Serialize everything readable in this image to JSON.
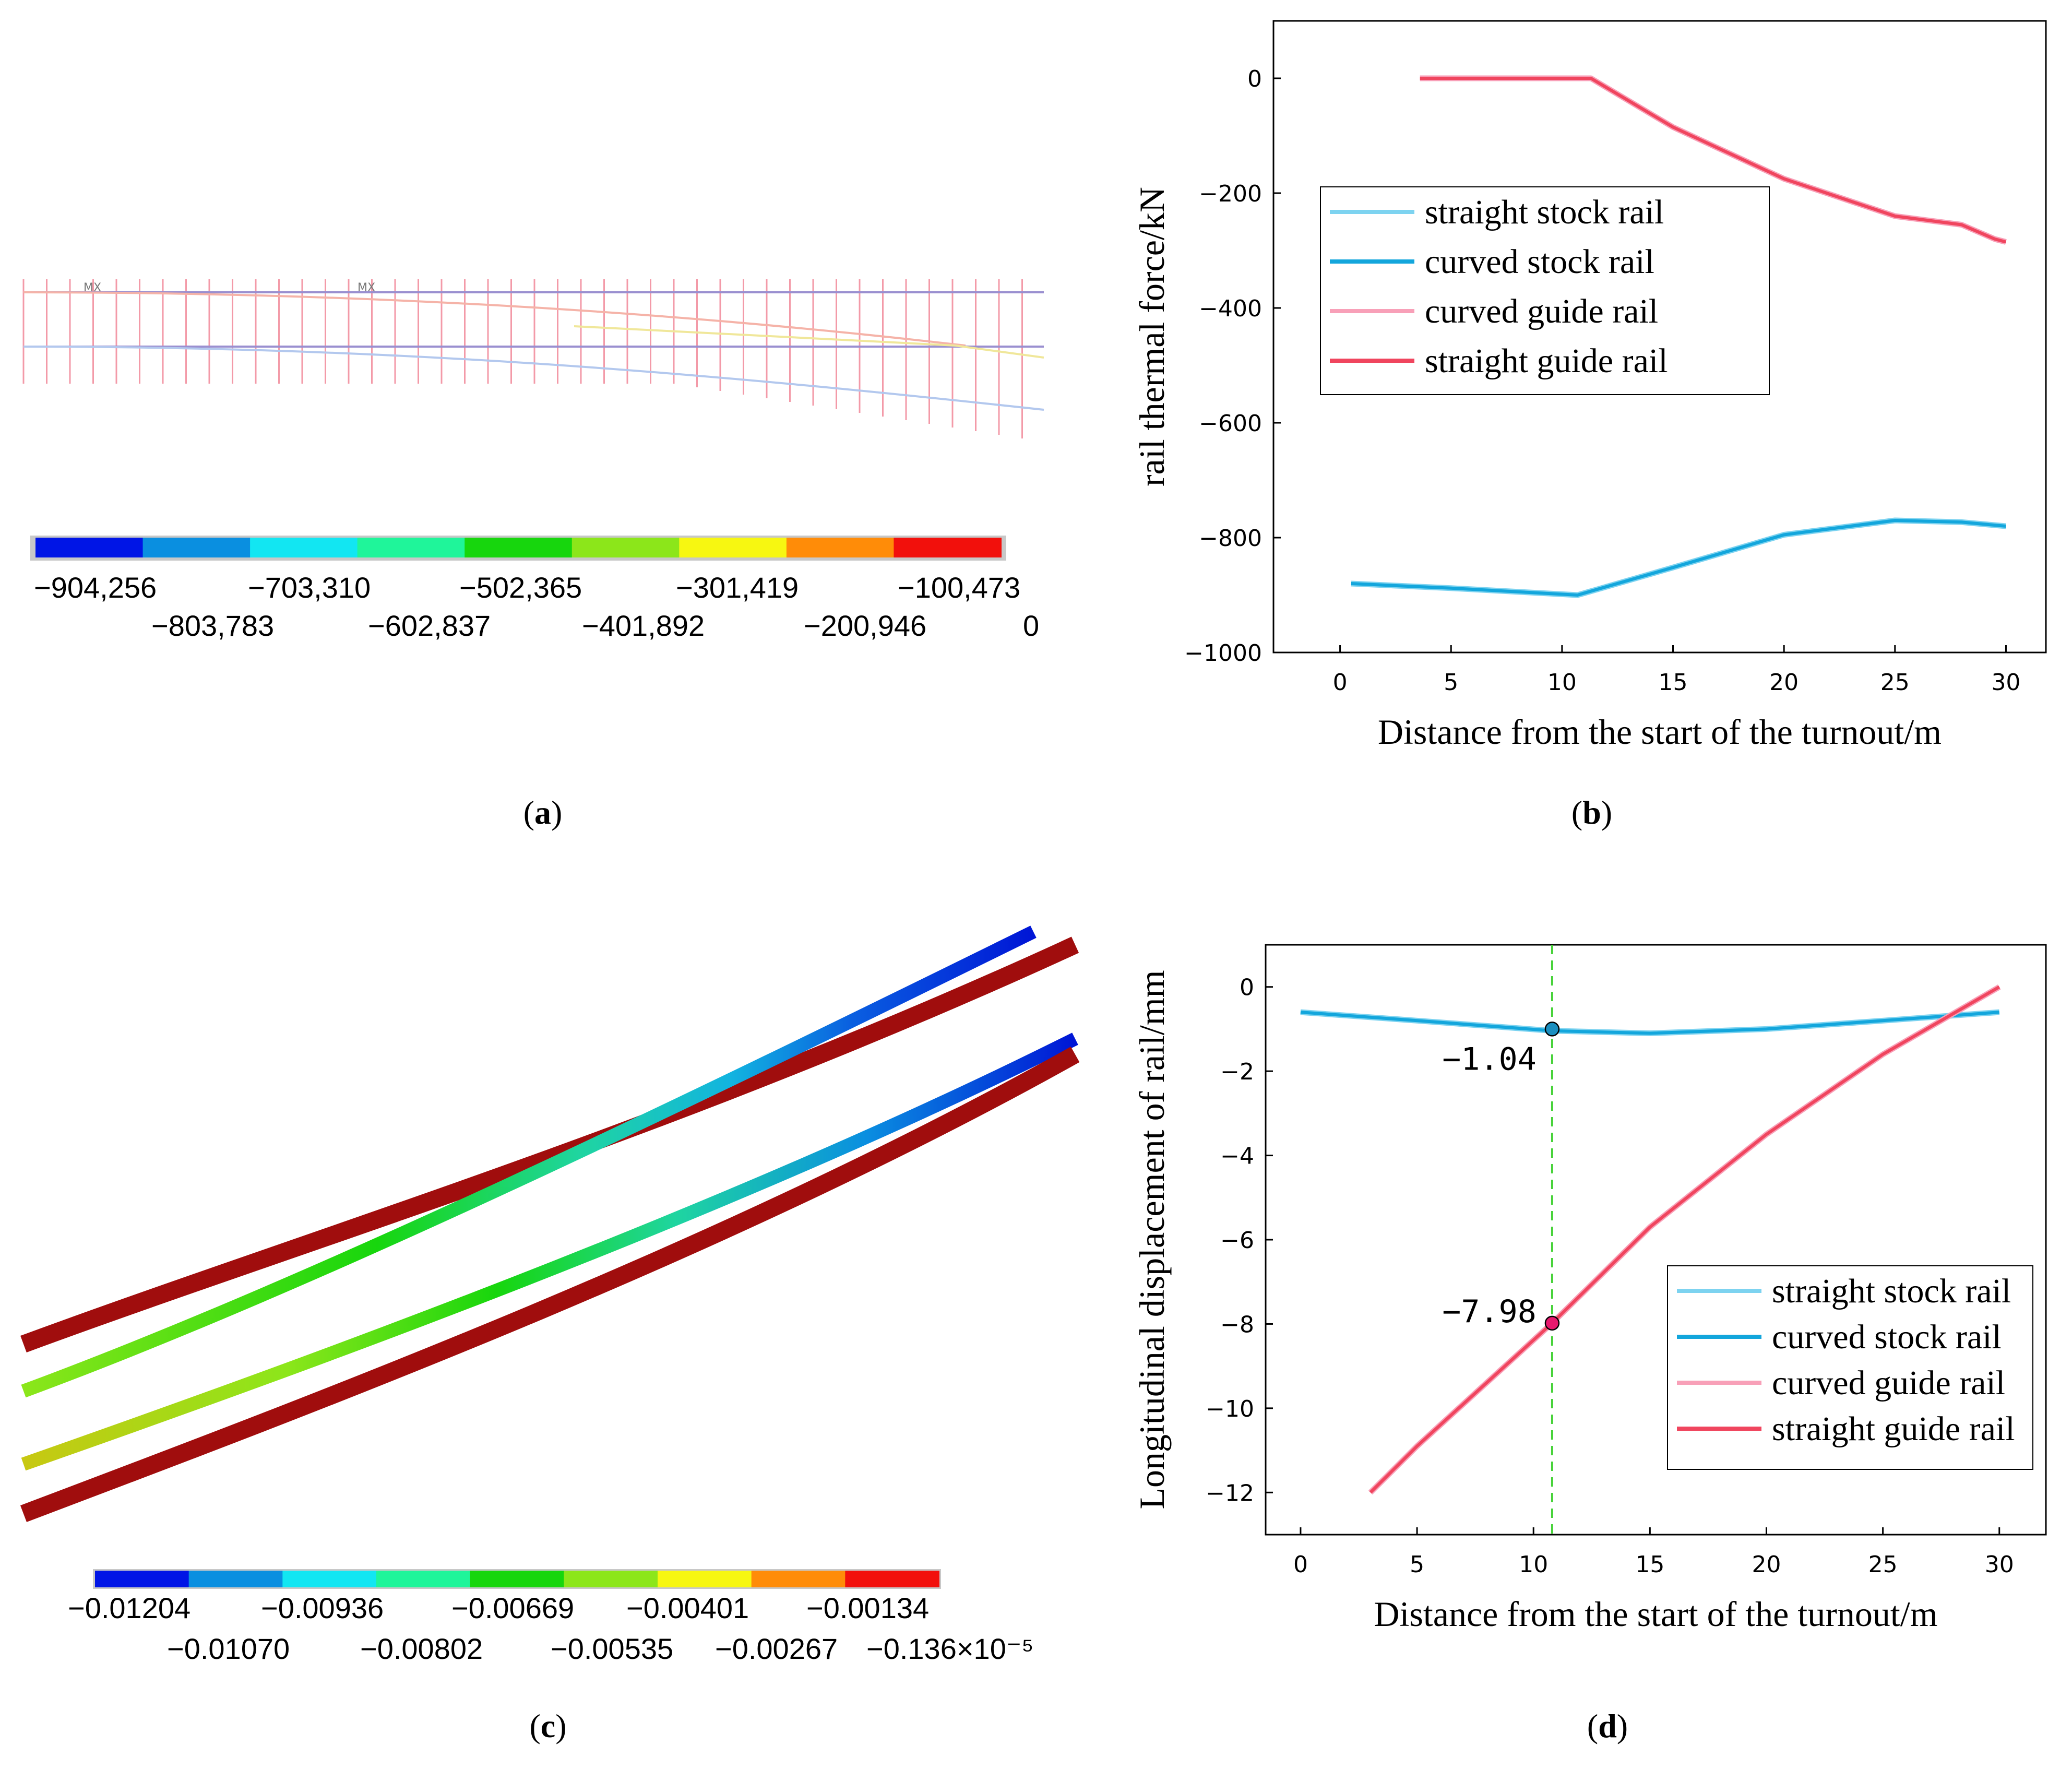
{
  "panel_a": {
    "caption": "(a)",
    "caption_letter": "a",
    "marker_labels": [
      "MX",
      "MX"
    ],
    "colorbar": {
      "colors": [
        "#0015e6",
        "#0a8fe0",
        "#12e6f2",
        "#1ff59a",
        "#17d60d",
        "#8ce61a",
        "#f7f711",
        "#ff8c08",
        "#f2100c"
      ],
      "labels_top": [
        "−904,256",
        "−703,310",
        "−502,365",
        "−301,419",
        "−100,473"
      ],
      "labels_bottom": [
        "−803,783",
        "−602,837",
        "−401,892",
        "−200,946",
        "0"
      ]
    }
  },
  "panel_b": {
    "caption": "(b)",
    "caption_letter": "b",
    "chart_data": {
      "type": "line",
      "xlabel": "Distance from the start of the turnout/m",
      "ylabel": "rail thermal force/kN",
      "xlim": [
        -3,
        31.8
      ],
      "ylim": [
        -1000,
        100
      ],
      "xticks": [
        0,
        5,
        10,
        15,
        20,
        25,
        30
      ],
      "yticks": [
        0,
        -200,
        -400,
        -600,
        -800,
        -1000
      ],
      "legend_position": "upper-left",
      "series": [
        {
          "name": "straight stock rail",
          "color": "#7dd3f0",
          "x": [
            0.5,
            5,
            10.7,
            15,
            20,
            25,
            28,
            30
          ],
          "y": [
            -880,
            -888,
            -900,
            -852,
            -795,
            -770,
            -773,
            -780
          ]
        },
        {
          "name": "curved stock rail",
          "color": "#13a6dc",
          "x": [
            0.5,
            5,
            10.7,
            15,
            20,
            25,
            28,
            30
          ],
          "y": [
            -880,
            -888,
            -900,
            -852,
            -795,
            -770,
            -773,
            -780
          ]
        },
        {
          "name": "curved guide rail",
          "color": "#f8a0b8",
          "x": [
            3.6,
            7,
            11.3,
            15,
            20,
            25,
            28,
            29.5,
            30
          ],
          "y": [
            0,
            0,
            0,
            -85,
            -175,
            -240,
            -255,
            -280,
            -285
          ]
        },
        {
          "name": "straight guide rail",
          "color": "#f0455e",
          "x": [
            3.6,
            7,
            11.3,
            15,
            20,
            25,
            28,
            29.5,
            30
          ],
          "y": [
            0,
            0,
            0,
            -85,
            -175,
            -240,
            -255,
            -280,
            -285
          ]
        }
      ]
    }
  },
  "panel_c": {
    "caption": "(c)",
    "caption_letter": "c",
    "colorbar": {
      "colors": [
        "#0015e6",
        "#0a8fe0",
        "#12e6f2",
        "#1ff59a",
        "#17d60d",
        "#8ce61a",
        "#f7f711",
        "#ff8c08",
        "#f2100c"
      ],
      "labels_top": [
        "−0.01204",
        "−0.00936",
        "−0.00669",
        "−0.00401",
        "−0.00134"
      ],
      "labels_bottom": [
        "−0.01070",
        "−0.00802",
        "−0.00535",
        "−0.00267",
        "−0.136×10⁻⁵"
      ]
    }
  },
  "panel_d": {
    "caption": "(d)",
    "caption_letter": "d",
    "chart_data": {
      "type": "line",
      "xlabel": "Distance from the start of the turnout/m",
      "ylabel": "Longitudinal displacement of rail/mm",
      "xlim": [
        -1.5,
        32
      ],
      "ylim": [
        -13,
        1
      ],
      "xticks": [
        0,
        5,
        10,
        15,
        20,
        25,
        30
      ],
      "yticks": [
        0,
        -2,
        -4,
        -6,
        -8,
        -10,
        -12
      ],
      "legend_position": "lower-right",
      "reference_x": 10.8,
      "annotations": [
        {
          "label": "−1.04",
          "x": 10.8,
          "y": -1.0,
          "color": "#1b8fc0"
        },
        {
          "label": "−7.98",
          "x": 10.8,
          "y": -7.98,
          "color": "#e8186e"
        }
      ],
      "series": [
        {
          "name": "straight stock rail",
          "color": "#7dd3f0",
          "x": [
            0,
            5,
            10.8,
            15,
            20,
            25,
            30
          ],
          "y": [
            -0.6,
            -0.8,
            -1.04,
            -1.1,
            -1.0,
            -0.8,
            -0.6
          ]
        },
        {
          "name": "curved stock rail",
          "color": "#13a6dc",
          "x": [
            0,
            5,
            10.8,
            15,
            20,
            25,
            30
          ],
          "y": [
            -0.6,
            -0.8,
            -1.04,
            -1.1,
            -1.0,
            -0.8,
            -0.6
          ]
        },
        {
          "name": "curved guide rail",
          "color": "#f8a0b8",
          "x": [
            3,
            5,
            10.8,
            15,
            20,
            25,
            30
          ],
          "y": [
            -12,
            -10.9,
            -7.98,
            -5.7,
            -3.5,
            -1.6,
            0
          ]
        },
        {
          "name": "straight guide rail",
          "color": "#f0455e",
          "x": [
            3,
            5,
            10.8,
            15,
            20,
            25,
            30
          ],
          "y": [
            -12,
            -10.9,
            -7.98,
            -5.7,
            -3.5,
            -1.6,
            0
          ]
        }
      ]
    }
  }
}
